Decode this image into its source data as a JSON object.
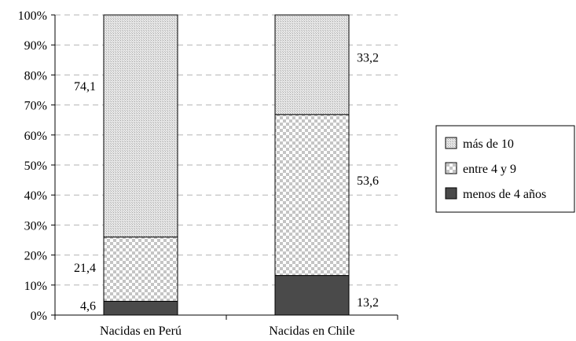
{
  "chart_data": {
    "type": "bar",
    "stacked": true,
    "percent": true,
    "categories": [
      "Nacidas en Perú",
      "Nacidas en Chile"
    ],
    "series": [
      {
        "name": "menos de 4 años",
        "values": [
          4.6,
          13.2
        ],
        "color": "#4a4a4a",
        "pattern": "solid"
      },
      {
        "name": "entre 4 y 9",
        "values": [
          21.4,
          53.6
        ],
        "color": "#cfcfcf",
        "pattern": "checker"
      },
      {
        "name": "más de 10",
        "values": [
          74.1,
          33.2
        ],
        "color": "#d9d9d9",
        "pattern": "fine-dots"
      }
    ],
    "data_labels": [
      [
        "4,6",
        "13,2"
      ],
      [
        "21,4",
        "53,6"
      ],
      [
        "74,1",
        "33,2"
      ]
    ],
    "ylim": [
      0,
      100
    ],
    "yticks": [
      "0%",
      "10%",
      "20%",
      "30%",
      "40%",
      "50%",
      "60%",
      "70%",
      "80%",
      "90%",
      "100%"
    ],
    "grid": true,
    "legend": {
      "position": "right",
      "entries": [
        "más de 10",
        "entre 4 y 9",
        "menos de 4 años"
      ]
    },
    "title": "",
    "xlabel": "",
    "ylabel": ""
  }
}
